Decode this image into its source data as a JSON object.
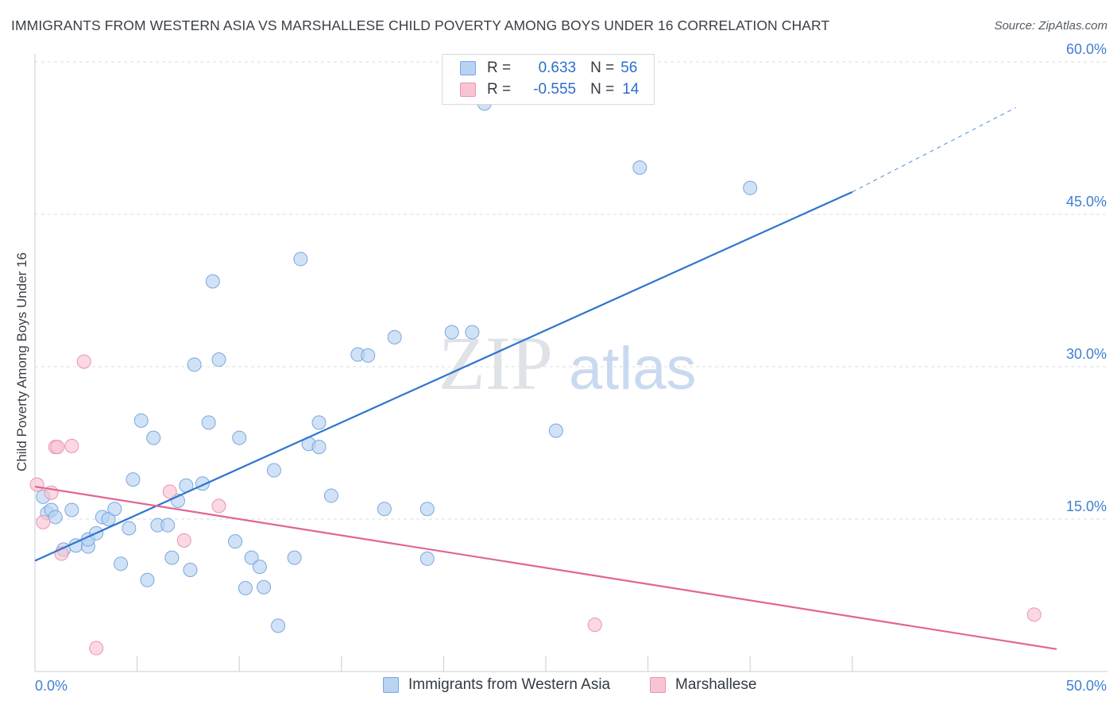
{
  "header": {
    "title": "IMMIGRANTS FROM WESTERN ASIA VS MARSHALLESE CHILD POVERTY AMONG BOYS UNDER 16 CORRELATION CHART",
    "source": "Source: ZipAtlas.com"
  },
  "watermark": {
    "zip": "ZIP",
    "atlas": "atlas"
  },
  "legend_top": {
    "rows": [
      {
        "r_label": "R =",
        "r_value": "0.633",
        "n_label": "N =",
        "n_value": "56"
      },
      {
        "r_label": "R =",
        "r_value": "-0.555",
        "n_label": "N =",
        "n_value": "14"
      }
    ]
  },
  "legend_bottom": {
    "items": [
      "Immigrants from Western Asia",
      "Marshallese"
    ]
  },
  "colors": {
    "blue_fill": "#b9d3f2",
    "blue_stroke": "#7aa7de",
    "blue_line": "#2f74cf",
    "pink_fill": "#f8c4d2",
    "pink_stroke": "#ec94ae",
    "pink_line": "#e0668f",
    "grid": "#d9dce1",
    "axis_text": "#3f7fd0"
  },
  "chart_data": {
    "type": "scatter",
    "title": "IMMIGRANTS FROM WESTERN ASIA VS MARSHALLESE CHILD POVERTY AMONG BOYS UNDER 16 CORRELATION CHART",
    "xlabel": "",
    "ylabel": "Child Poverty Among Boys Under 16",
    "xlim": [
      0,
      50
    ],
    "ylim": [
      0,
      60
    ],
    "x_tick_labels": [
      "0.0%",
      "50.0%"
    ],
    "y_ticks": [
      15,
      30,
      45,
      60
    ],
    "y_tick_labels": [
      "15.0%",
      "30.0%",
      "45.0%",
      "60.0%"
    ],
    "grid": true,
    "series": [
      {
        "name": "Immigrants from Western Asia",
        "r": 0.633,
        "n": 56,
        "trend": {
          "x0": 0,
          "y0": 10.9,
          "x1": 40,
          "y1": 47.2,
          "dash_to_x": 48,
          "dash_to_y": 55.5
        },
        "points": [
          [
            0.4,
            17.2
          ],
          [
            0.6,
            15.6
          ],
          [
            0.8,
            15.9
          ],
          [
            1.0,
            15.2
          ],
          [
            1.4,
            12.0
          ],
          [
            1.8,
            15.9
          ],
          [
            2.0,
            12.4
          ],
          [
            2.6,
            12.3
          ],
          [
            2.6,
            13.0
          ],
          [
            3.0,
            13.6
          ],
          [
            3.3,
            15.2
          ],
          [
            3.6,
            15.0
          ],
          [
            3.9,
            16.0
          ],
          [
            4.2,
            10.6
          ],
          [
            4.6,
            14.1
          ],
          [
            4.8,
            18.9
          ],
          [
            5.2,
            24.7
          ],
          [
            5.5,
            9.0
          ],
          [
            5.8,
            23.0
          ],
          [
            6.0,
            14.4
          ],
          [
            6.5,
            14.4
          ],
          [
            6.7,
            11.2
          ],
          [
            7.0,
            16.8
          ],
          [
            7.4,
            18.3
          ],
          [
            7.6,
            10.0
          ],
          [
            7.8,
            30.2
          ],
          [
            8.2,
            18.5
          ],
          [
            8.5,
            24.5
          ],
          [
            8.7,
            38.4
          ],
          [
            9.0,
            30.7
          ],
          [
            9.8,
            12.8
          ],
          [
            10.0,
            23.0
          ],
          [
            10.3,
            8.2
          ],
          [
            10.6,
            11.2
          ],
          [
            11.0,
            10.3
          ],
          [
            11.2,
            8.3
          ],
          [
            11.7,
            19.8
          ],
          [
            11.9,
            4.5
          ],
          [
            12.7,
            11.2
          ],
          [
            13.0,
            40.6
          ],
          [
            13.4,
            22.4
          ],
          [
            13.9,
            24.5
          ],
          [
            13.9,
            22.1
          ],
          [
            14.5,
            17.3
          ],
          [
            15.8,
            31.2
          ],
          [
            16.3,
            31.1
          ],
          [
            17.1,
            16.0
          ],
          [
            17.6,
            32.9
          ],
          [
            19.2,
            16.0
          ],
          [
            19.2,
            11.1
          ],
          [
            20.4,
            33.4
          ],
          [
            21.4,
            33.4
          ],
          [
            22.0,
            55.9
          ],
          [
            25.5,
            23.7
          ],
          [
            29.6,
            49.6
          ],
          [
            35.0,
            47.6
          ]
        ]
      },
      {
        "name": "Marshallese",
        "r": -0.555,
        "n": 14,
        "trend": {
          "x0": 0,
          "y0": 18.2,
          "x1": 50,
          "y1": 2.2
        },
        "points": [
          [
            0.1,
            18.4
          ],
          [
            0.4,
            14.7
          ],
          [
            0.8,
            17.6
          ],
          [
            1.0,
            22.1
          ],
          [
            1.1,
            22.1
          ],
          [
            1.3,
            11.6
          ],
          [
            1.8,
            22.2
          ],
          [
            2.4,
            30.5
          ],
          [
            3.0,
            2.3
          ],
          [
            6.6,
            17.7
          ],
          [
            7.3,
            12.9
          ],
          [
            9.0,
            16.3
          ],
          [
            27.4,
            4.6
          ],
          [
            48.9,
            5.6
          ]
        ]
      }
    ]
  }
}
